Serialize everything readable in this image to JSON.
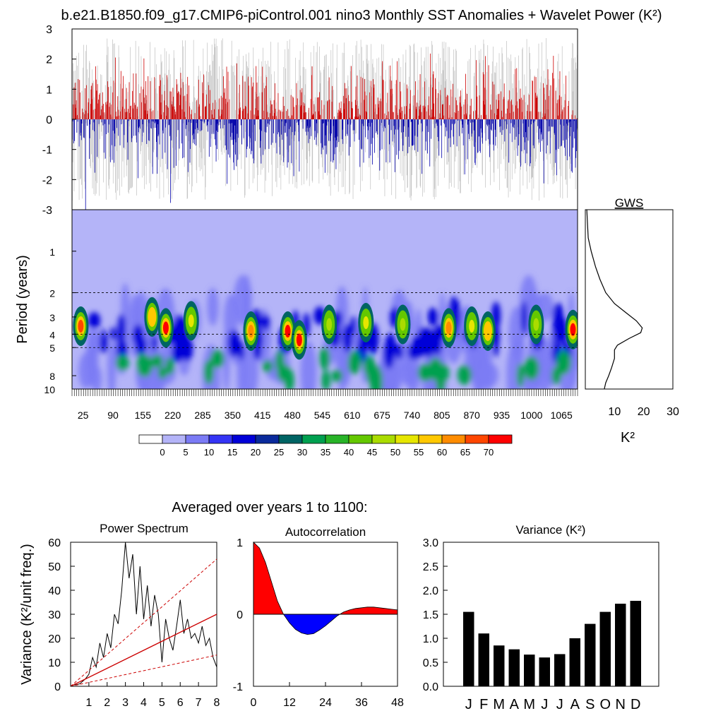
{
  "page_title": "b.e21.B1850.f09_g17.CMIP6-piControl.001 nino3 Monthly SST Anomalies + Wavelet Power (K²)",
  "summary_title": "Averaged over years 1 to 1100:",
  "colors": {
    "positive": "#cc0000",
    "negative": "#0000aa",
    "grey": "#c0c0c0",
    "background_power": "#b4b4f8"
  },
  "chart_data": [
    {
      "id": "anomaly",
      "type": "bar",
      "title": "b.e21.B1850.f09_g17.CMIP6-piControl.001 nino3 Monthly SST Anomalies + Wavelet Power (K²)",
      "ylim": [
        -3,
        3
      ],
      "y_ticks": [
        "3",
        "2",
        "1",
        "0",
        "-1",
        "-2",
        "-3"
      ],
      "note": "monthly bars, positive red, negative blue, grey background envelope"
    },
    {
      "id": "wavelet",
      "type": "heatmap",
      "ylabel": "Period (years)",
      "y_ticks": [
        "1",
        "2",
        "3",
        "4",
        "5",
        "8",
        "10"
      ],
      "x_ticks": [
        "25",
        "90",
        "155",
        "220",
        "285",
        "350",
        "415",
        "480",
        "545",
        "610",
        "675",
        "740",
        "805",
        "870",
        "935",
        "1000",
        "1065"
      ],
      "colorbar_labels": [
        "0",
        "5",
        "10",
        "15",
        "20",
        "25",
        "30",
        "35",
        "40",
        "45",
        "50",
        "55",
        "60",
        "65",
        "70"
      ],
      "colorbar_colors": [
        "#ffffff",
        "#b4b4f8",
        "#7b7bf5",
        "#3434f5",
        "#0000d8",
        "#0a2a9c",
        "#006464",
        "#00a050",
        "#28b428",
        "#64c800",
        "#aadc00",
        "#e6e600",
        "#ffc800",
        "#ff8c00",
        "#ff4600",
        "#ff0000"
      ],
      "dashed_periods": [
        2,
        4,
        5
      ],
      "hotspots": [
        {
          "year": 20,
          "period": 3.5,
          "power": 65
        },
        {
          "year": 175,
          "period": 3.0,
          "power": 55
        },
        {
          "year": 205,
          "period": 3.6,
          "power": 68
        },
        {
          "year": 260,
          "period": 3.2,
          "power": 50
        },
        {
          "year": 390,
          "period": 3.8,
          "power": 62
        },
        {
          "year": 470,
          "period": 3.8,
          "power": 70
        },
        {
          "year": 495,
          "period": 4.4,
          "power": 68
        },
        {
          "year": 560,
          "period": 3.4,
          "power": 45
        },
        {
          "year": 640,
          "period": 3.3,
          "power": 50
        },
        {
          "year": 720,
          "period": 3.4,
          "power": 45
        },
        {
          "year": 820,
          "period": 3.6,
          "power": 58
        },
        {
          "year": 870,
          "period": 3.5,
          "power": 48
        },
        {
          "year": 905,
          "period": 3.8,
          "power": 55
        },
        {
          "year": 1010,
          "period": 3.4,
          "power": 45
        },
        {
          "year": 1090,
          "period": 3.7,
          "power": 70
        }
      ]
    },
    {
      "id": "gws",
      "type": "line",
      "title": "GWS",
      "xlabel": "K²",
      "x_ticks": [
        "10",
        "20",
        "30"
      ],
      "xlim": [
        0,
        30
      ],
      "period": [
        0.5,
        0.8,
        1.0,
        1.3,
        1.6,
        2.0,
        2.4,
        2.8,
        3.2,
        3.6,
        3.9,
        4.3,
        4.8,
        5.2,
        6.0,
        7.0,
        8.0,
        9.0,
        10.0
      ],
      "power": [
        0.5,
        1.0,
        2.0,
        3.5,
        5.0,
        7.0,
        10.0,
        14.0,
        17.5,
        19.5,
        19.0,
        15.0,
        11.0,
        10.0,
        10.0,
        9.0,
        8.0,
        7.0,
        6.5
      ]
    },
    {
      "id": "power_spectrum",
      "type": "line",
      "title": "Power Spectrum",
      "ylabel": "Variance (K²/unit freq.)",
      "ylim": [
        0,
        60
      ],
      "xlim": [
        0,
        8
      ],
      "x_ticks": [
        "1",
        "2",
        "3",
        "4",
        "5",
        "6",
        "7",
        "8"
      ],
      "y_ticks": [
        "0",
        "10",
        "20",
        "30",
        "40",
        "50",
        "60"
      ],
      "series": [
        {
          "style": "solid black",
          "x": [
            0.2,
            0.5,
            0.8,
            1.0,
            1.2,
            1.4,
            1.6,
            1.8,
            2.0,
            2.2,
            2.4,
            2.6,
            2.8,
            3.0,
            3.2,
            3.4,
            3.6,
            3.8,
            4.0,
            4.2,
            4.4,
            4.6,
            4.8,
            5.0,
            5.2,
            5.4,
            5.6,
            5.8,
            6.0,
            6.2,
            6.4,
            6.6,
            6.8,
            7.0,
            7.2,
            7.4,
            7.6,
            7.8,
            8.0
          ],
          "y": [
            0.5,
            1,
            3,
            5,
            12,
            8,
            18,
            12,
            22,
            16,
            30,
            26,
            40,
            60,
            45,
            55,
            30,
            50,
            28,
            42,
            25,
            38,
            30,
            10,
            28,
            20,
            15,
            25,
            36,
            22,
            28,
            20,
            22,
            18,
            25,
            17,
            20,
            12,
            8
          ]
        },
        {
          "style": "solid red",
          "x": [
            0,
            8
          ],
          "y": [
            0,
            30
          ]
        },
        {
          "style": "dashed red",
          "x": [
            0,
            8
          ],
          "y": [
            0,
            53
          ]
        },
        {
          "style": "dashed red",
          "x": [
            0,
            8
          ],
          "y": [
            0,
            13
          ]
        }
      ]
    },
    {
      "id": "autocorrelation",
      "type": "area",
      "title": "Autocorrelation",
      "ylim": [
        -1,
        1
      ],
      "xlim": [
        0,
        48
      ],
      "x_ticks": [
        "0",
        "12",
        "24",
        "36",
        "48"
      ],
      "y_ticks": [
        "1",
        "0",
        "-1"
      ],
      "x": [
        0,
        2,
        4,
        6,
        8,
        10,
        12,
        14,
        16,
        18,
        20,
        22,
        24,
        26,
        28,
        30,
        32,
        34,
        36,
        38,
        40,
        42,
        44,
        46,
        48
      ],
      "y": [
        1.0,
        0.92,
        0.72,
        0.45,
        0.18,
        0.0,
        -0.12,
        -0.21,
        -0.26,
        -0.28,
        -0.27,
        -0.22,
        -0.16,
        -0.09,
        -0.02,
        0.03,
        0.06,
        0.08,
        0.09,
        0.1,
        0.1,
        0.09,
        0.08,
        0.07,
        0.06
      ]
    },
    {
      "id": "variance",
      "type": "bar",
      "title": "Variance (K²)",
      "categories": [
        "J",
        "F",
        "M",
        "A",
        "M",
        "J",
        "J",
        "A",
        "S",
        "O",
        "N",
        "D"
      ],
      "values": [
        1.55,
        1.1,
        0.85,
        0.77,
        0.66,
        0.6,
        0.67,
        1.0,
        1.3,
        1.55,
        1.72,
        1.78
      ],
      "ylim": [
        0,
        3
      ],
      "y_ticks": [
        "0.0",
        "0.5",
        "1.0",
        "1.5",
        "2.0",
        "2.5",
        "3.0"
      ]
    }
  ]
}
